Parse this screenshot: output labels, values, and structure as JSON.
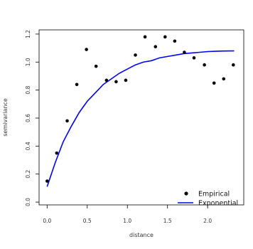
{
  "chart_data": {
    "type": "scatter",
    "xlabel": "distance",
    "ylabel": "semivariance",
    "xlim": [
      -0.1,
      2.45
    ],
    "ylim": [
      -0.02,
      1.23
    ],
    "x_ticks": [
      0.0,
      0.5,
      1.0,
      1.5,
      2.0
    ],
    "x_tick_labels": [
      "0.0",
      "0.5",
      "1.0",
      "1.5",
      "2.0"
    ],
    "y_ticks": [
      0.0,
      0.2,
      0.4,
      0.6,
      0.8,
      1.0,
      1.2
    ],
    "y_tick_labels": [
      "0.0",
      "0.2",
      "0.4",
      "0.6",
      "0.8",
      "1.0",
      "1.2"
    ],
    "grid": false,
    "legend_position": "bottom-right",
    "series": [
      {
        "name": "Empirical",
        "kind": "points",
        "color": "#000000",
        "x": [
          0.0,
          0.12,
          0.25,
          0.37,
          0.49,
          0.61,
          0.74,
          0.86,
          0.98,
          1.1,
          1.22,
          1.35,
          1.47,
          1.59,
          1.71,
          1.83,
          1.96,
          2.08,
          2.2,
          2.32
        ],
        "y": [
          0.15,
          0.35,
          0.58,
          0.84,
          1.09,
          0.97,
          0.87,
          0.86,
          0.87,
          1.05,
          1.18,
          1.11,
          1.18,
          1.15,
          1.07,
          1.03,
          0.98,
          0.85,
          0.88,
          0.98
        ]
      },
      {
        "name": "Exponential",
        "kind": "line",
        "color": "#0000ff",
        "x": [
          0.0,
          0.1,
          0.2,
          0.3,
          0.4,
          0.5,
          0.6,
          0.7,
          0.8,
          0.9,
          1.0,
          1.1,
          1.2,
          1.3,
          1.4,
          1.5,
          1.6,
          1.7,
          1.8,
          1.9,
          2.0,
          2.1,
          2.2,
          2.3,
          2.33
        ],
        "y": [
          0.11,
          0.28,
          0.43,
          0.54,
          0.64,
          0.72,
          0.78,
          0.84,
          0.88,
          0.92,
          0.95,
          0.98,
          1.0,
          1.01,
          1.03,
          1.04,
          1.05,
          1.06,
          1.065,
          1.07,
          1.075,
          1.077,
          1.079,
          1.08,
          1.08
        ]
      }
    ]
  }
}
